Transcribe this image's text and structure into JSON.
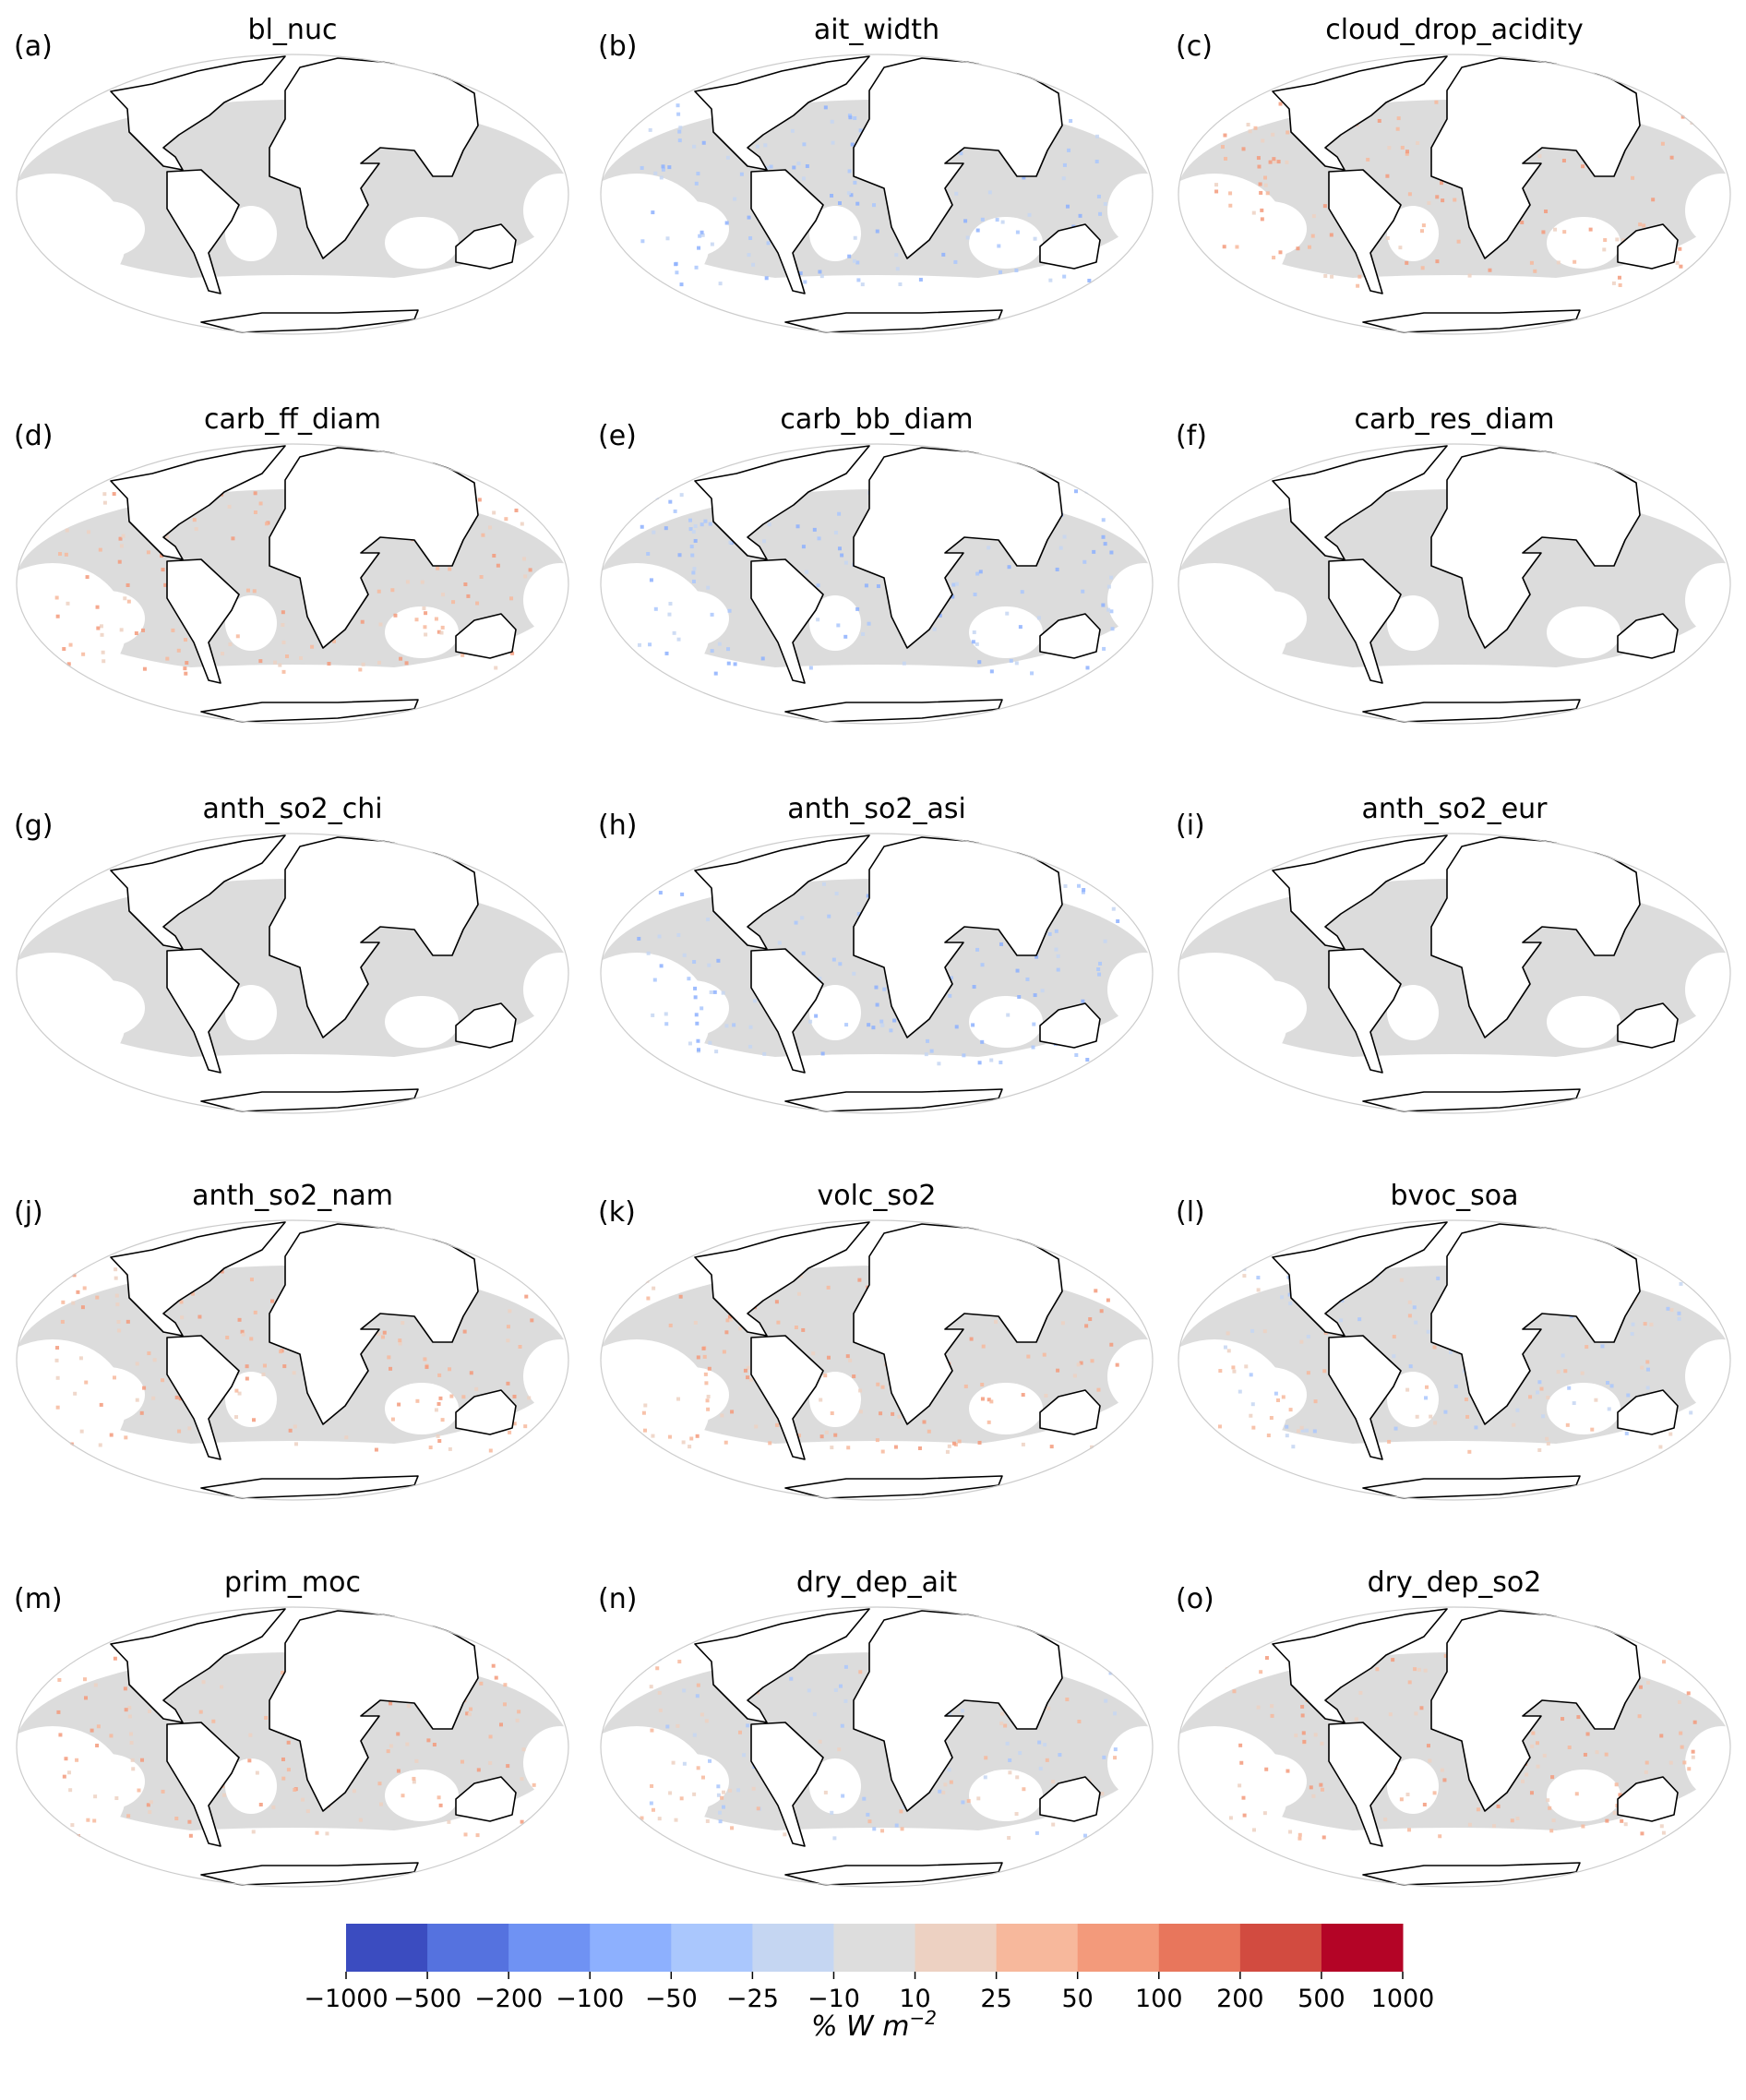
{
  "panels": [
    {
      "letter": "(a)",
      "title": "bl_nuc",
      "tint": "neutral"
    },
    {
      "letter": "(b)",
      "title": "ait_width",
      "tint": "blue"
    },
    {
      "letter": "(c)",
      "title": "cloud_drop_acidity",
      "tint": "red"
    },
    {
      "letter": "(d)",
      "title": "carb_ff_diam",
      "tint": "red"
    },
    {
      "letter": "(e)",
      "title": "carb_bb_diam",
      "tint": "blue"
    },
    {
      "letter": "(f)",
      "title": "carb_res_diam",
      "tint": "neutral"
    },
    {
      "letter": "(g)",
      "title": "anth_so2_chi",
      "tint": "neutral"
    },
    {
      "letter": "(h)",
      "title": "anth_so2_asi",
      "tint": "blue"
    },
    {
      "letter": "(i)",
      "title": "anth_so2_eur",
      "tint": "neutral"
    },
    {
      "letter": "(j)",
      "title": "anth_so2_nam",
      "tint": "red"
    },
    {
      "letter": "(k)",
      "title": "volc_so2",
      "tint": "red"
    },
    {
      "letter": "(l)",
      "title": "bvoc_soa",
      "tint": "mixed"
    },
    {
      "letter": "(m)",
      "title": "prim_moc",
      "tint": "red"
    },
    {
      "letter": "(n)",
      "title": "dry_dep_ait",
      "tint": "mixed"
    },
    {
      "letter": "(o)",
      "title": "dry_dep_so2",
      "tint": "red"
    }
  ],
  "colorbar": {
    "label": "% W m",
    "label_exponent": "−2",
    "ticks": [
      "−1000",
      "−500",
      "−200",
      "−100",
      "−50",
      "−25",
      "−10",
      "10",
      "25",
      "50",
      "100",
      "200",
      "500",
      "1000"
    ],
    "colors": [
      "#3b4cc0",
      "#5572df",
      "#6f92f3",
      "#8db0fe",
      "#aac7fd",
      "#c5d6f2",
      "#dddddd",
      "#edd1c2",
      "#f7b89c",
      "#f39a7b",
      "#e8765c",
      "#d24b40",
      "#b40426"
    ]
  },
  "map_colors": {
    "ocean_neutral": "#dcdcdc",
    "land": "#ffffff",
    "coast": "#000000"
  }
}
